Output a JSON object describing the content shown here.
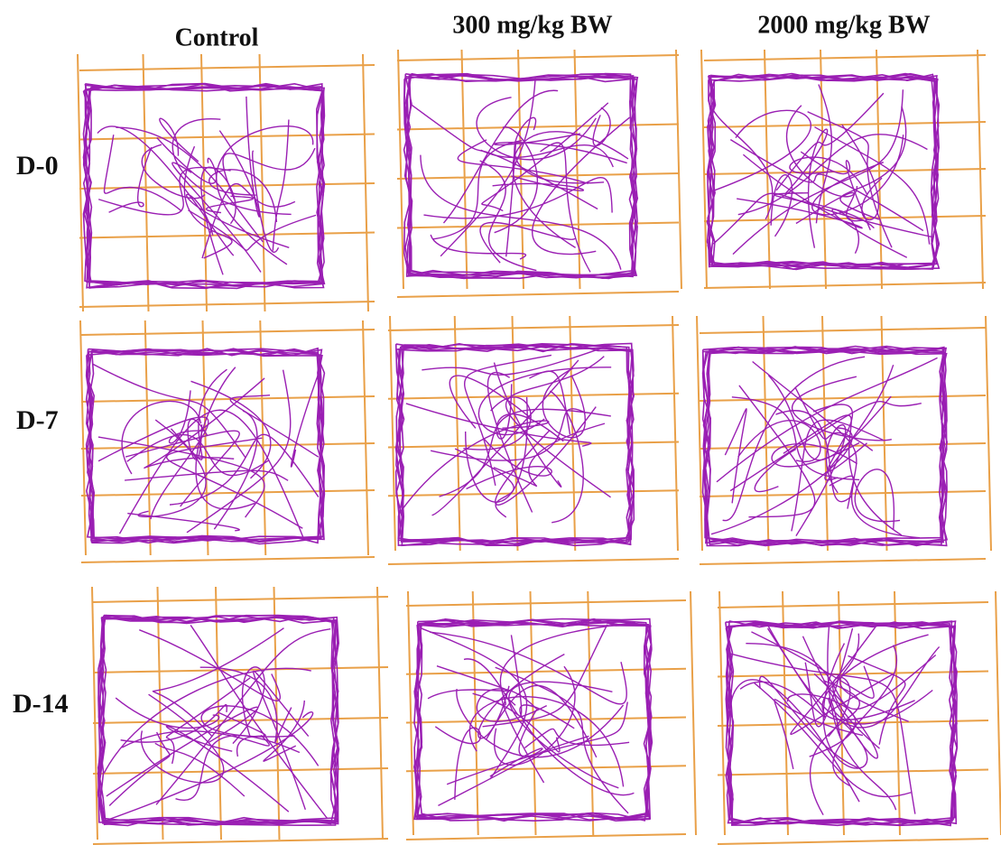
{
  "column_headers": [
    "Control",
    "300 mg/kg BW",
    "2000 mg/kg BW"
  ],
  "row_labels": [
    "D-0",
    "D-7",
    "D-14"
  ]
}
